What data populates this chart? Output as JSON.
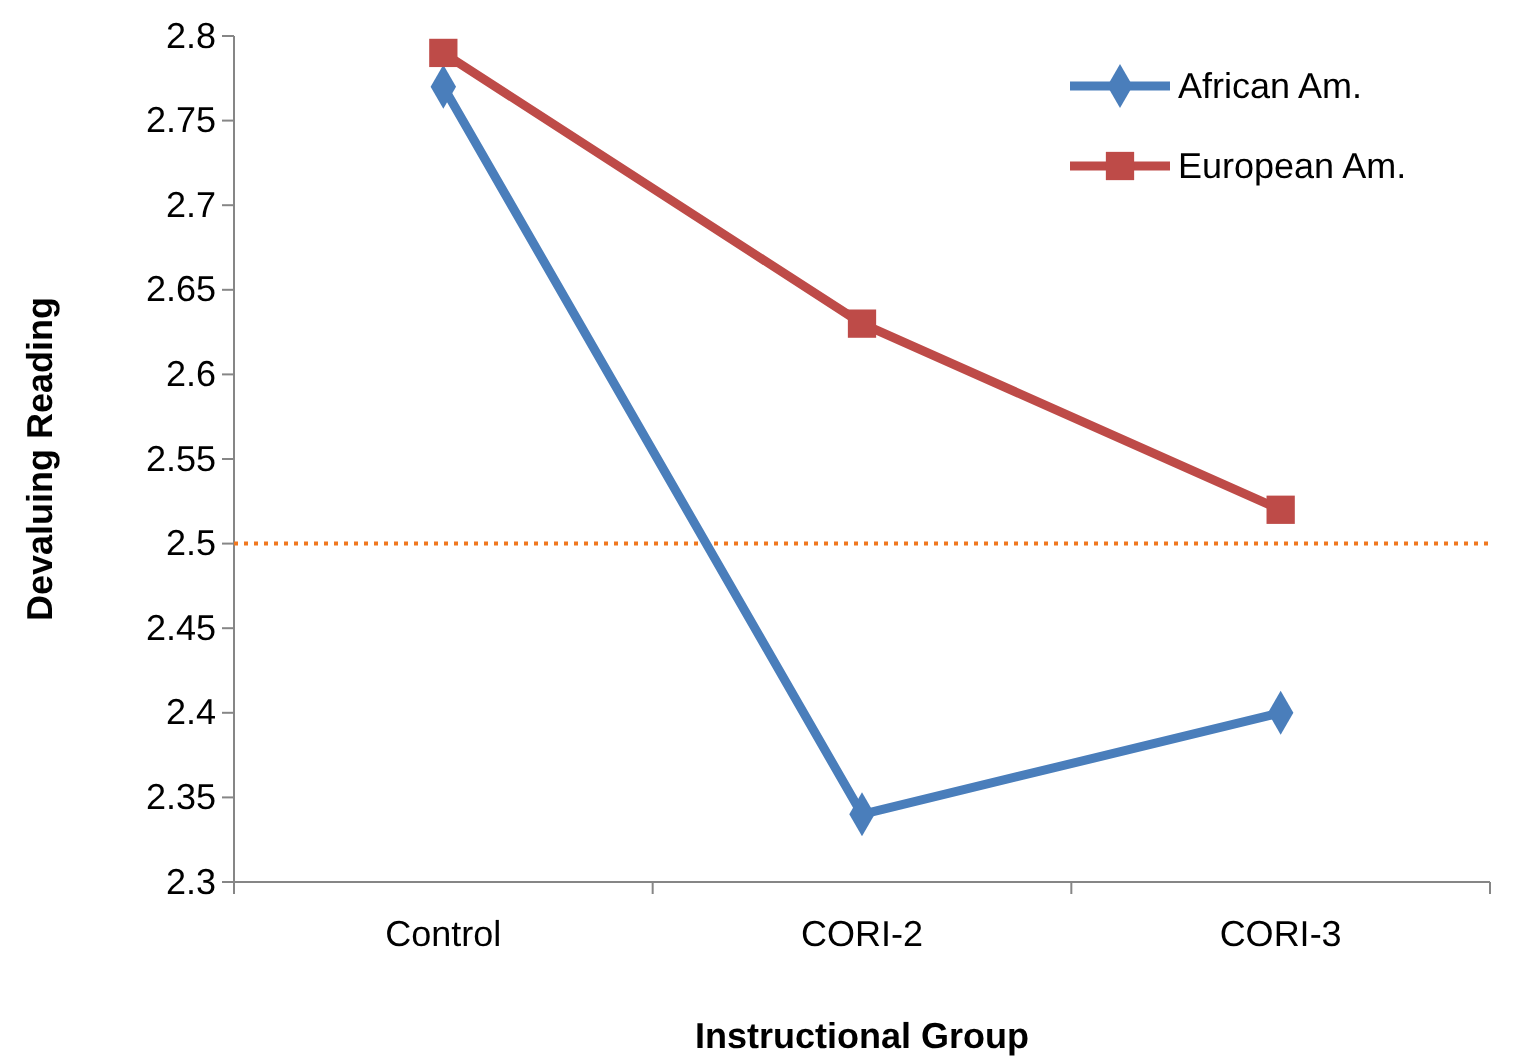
{
  "chart_data": {
    "type": "line",
    "xlabel": "Instructional Group",
    "ylabel": "Devaluing Reading",
    "categories": [
      "Control",
      "CORI-2",
      "CORI-3"
    ],
    "series": [
      {
        "name": "African Am.",
        "color": "#4a7ebb",
        "marker": "diamond",
        "values": [
          2.77,
          2.34,
          2.4
        ]
      },
      {
        "name": "European Am.",
        "color": "#be4b48",
        "marker": "square",
        "values": [
          2.79,
          2.63,
          2.52
        ]
      }
    ],
    "ylim": [
      2.3,
      2.8
    ],
    "yticks": [
      {
        "value": 2.3,
        "label": "2.3"
      },
      {
        "value": 2.35,
        "label": "2.35"
      },
      {
        "value": 2.4,
        "label": "2.4"
      },
      {
        "value": 2.45,
        "label": "2.45"
      },
      {
        "value": 2.5,
        "label": "2.5"
      },
      {
        "value": 2.55,
        "label": "2.55"
      },
      {
        "value": 2.6,
        "label": "2.6"
      },
      {
        "value": 2.65,
        "label": "2.65"
      },
      {
        "value": 2.7,
        "label": "2.7"
      },
      {
        "value": 2.75,
        "label": "2.75"
      },
      {
        "value": 2.8,
        "label": "2.8"
      }
    ],
    "ref_lines": [
      {
        "axis": "y",
        "value": 2.5,
        "color": "#f07820",
        "line_style": "dotted"
      }
    ],
    "grid": false,
    "legend": "top right",
    "line_style": "solid"
  }
}
